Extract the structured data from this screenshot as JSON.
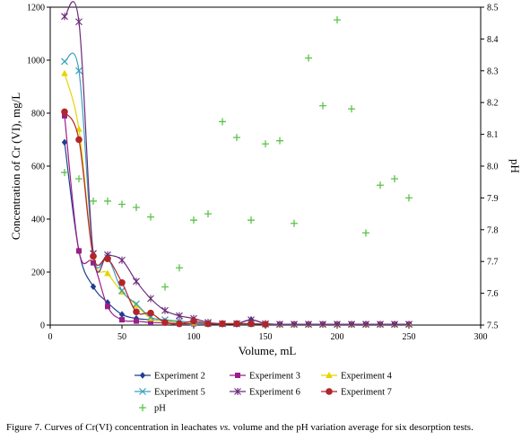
{
  "chart_data": {
    "type": "line",
    "xlabel": "Volume, mL",
    "ylabel": "Concentration of Cr (VI), mg/L",
    "y2label": "pH",
    "xlim": [
      0,
      300
    ],
    "xticks": [
      0,
      50,
      100,
      150,
      200,
      250,
      300
    ],
    "ylim": [
      0,
      1200
    ],
    "yticks": [
      0,
      200,
      400,
      600,
      800,
      1000,
      1200
    ],
    "y2lim": [
      7.5,
      8.5
    ],
    "y2ticks": [
      "7.5",
      "7.6",
      "7.7",
      "7.8",
      "7.9",
      "8.0",
      "8.1",
      "8.2",
      "8.3",
      "8.4",
      "8.5"
    ],
    "grid": false,
    "legend_position": "bottom",
    "series": [
      {
        "name": "Experiment 2",
        "color": "#1f3f8f",
        "marker": "diamond",
        "axis": "left",
        "points": [
          [
            10,
            690
          ],
          [
            20,
            280
          ],
          [
            30,
            145
          ],
          [
            40,
            85
          ],
          [
            50,
            40
          ],
          [
            60,
            25
          ],
          [
            70,
            20
          ],
          [
            80,
            15
          ],
          [
            90,
            10
          ],
          [
            100,
            8
          ],
          [
            110,
            5
          ],
          [
            120,
            5
          ],
          [
            130,
            5
          ],
          [
            140,
            20
          ],
          [
            150,
            5
          ],
          [
            160,
            3
          ],
          [
            170,
            3
          ],
          [
            180,
            3
          ],
          [
            190,
            3
          ],
          [
            200,
            3
          ],
          [
            210,
            3
          ],
          [
            220,
            3
          ],
          [
            230,
            3
          ],
          [
            240,
            3
          ],
          [
            250,
            3
          ]
        ]
      },
      {
        "name": "Experiment 3",
        "color": "#9b1f8a",
        "marker": "square",
        "axis": "left",
        "points": [
          [
            10,
            790
          ],
          [
            20,
            280
          ],
          [
            30,
            235
          ],
          [
            40,
            70
          ],
          [
            50,
            20
          ],
          [
            60,
            15
          ],
          [
            70,
            10
          ],
          [
            80,
            8
          ],
          [
            90,
            5
          ],
          [
            100,
            5
          ],
          [
            110,
            5
          ],
          [
            120,
            5
          ],
          [
            130,
            5
          ],
          [
            140,
            5
          ],
          [
            150,
            3
          ],
          [
            160,
            3
          ],
          [
            170,
            3
          ],
          [
            180,
            3
          ],
          [
            190,
            3
          ],
          [
            200,
            3
          ],
          [
            210,
            3
          ],
          [
            220,
            3
          ],
          [
            230,
            3
          ],
          [
            240,
            3
          ],
          [
            250,
            3
          ]
        ]
      },
      {
        "name": "Experiment 4",
        "color": "#e6d400",
        "marker": "triangle",
        "axis": "left",
        "points": [
          [
            10,
            950
          ],
          [
            20,
            740
          ],
          [
            30,
            260
          ],
          [
            40,
            195
          ],
          [
            50,
            125
          ],
          [
            60,
            75
          ],
          [
            70,
            25
          ],
          [
            80,
            15
          ],
          [
            90,
            10
          ],
          [
            100,
            8
          ],
          [
            110,
            5
          ],
          [
            120,
            5
          ],
          [
            130,
            5
          ],
          [
            140,
            5
          ],
          [
            150,
            3
          ],
          [
            160,
            3
          ],
          [
            170,
            3
          ],
          [
            180,
            3
          ],
          [
            190,
            3
          ],
          [
            200,
            3
          ],
          [
            210,
            3
          ],
          [
            220,
            3
          ],
          [
            230,
            3
          ],
          [
            240,
            3
          ],
          [
            250,
            3
          ]
        ]
      },
      {
        "name": "Experiment 5",
        "color": "#3a9fc0",
        "marker": "x",
        "axis": "left",
        "points": [
          [
            10,
            995
          ],
          [
            20,
            960
          ],
          [
            30,
            270
          ],
          [
            40,
            255
          ],
          [
            50,
            130
          ],
          [
            60,
            80
          ],
          [
            70,
            30
          ],
          [
            80,
            20
          ],
          [
            90,
            15
          ],
          [
            100,
            10
          ],
          [
            110,
            5
          ],
          [
            120,
            5
          ],
          [
            130,
            5
          ],
          [
            140,
            5
          ],
          [
            150,
            3
          ],
          [
            160,
            3
          ],
          [
            170,
            3
          ],
          [
            180,
            3
          ],
          [
            190,
            3
          ],
          [
            200,
            3
          ],
          [
            210,
            3
          ],
          [
            220,
            3
          ],
          [
            230,
            3
          ],
          [
            240,
            3
          ],
          [
            250,
            3
          ]
        ]
      },
      {
        "name": "Experiment 6",
        "color": "#6b2a7a",
        "marker": "star",
        "axis": "left",
        "points": [
          [
            10,
            1165
          ],
          [
            20,
            1145
          ],
          [
            30,
            270
          ],
          [
            40,
            265
          ],
          [
            50,
            245
          ],
          [
            60,
            165
          ],
          [
            70,
            100
          ],
          [
            80,
            55
          ],
          [
            90,
            35
          ],
          [
            100,
            25
          ],
          [
            110,
            10
          ],
          [
            120,
            5
          ],
          [
            130,
            5
          ],
          [
            140,
            20
          ],
          [
            150,
            5
          ],
          [
            160,
            3
          ],
          [
            170,
            3
          ],
          [
            180,
            3
          ],
          [
            190,
            3
          ],
          [
            200,
            3
          ],
          [
            210,
            3
          ],
          [
            220,
            3
          ],
          [
            230,
            3
          ],
          [
            240,
            3
          ],
          [
            250,
            3
          ]
        ]
      },
      {
        "name": "Experiment 7",
        "color": "#b0262a",
        "marker": "circle",
        "axis": "left",
        "points": [
          [
            10,
            805
          ],
          [
            20,
            700
          ],
          [
            30,
            260
          ],
          [
            40,
            250
          ],
          [
            50,
            160
          ],
          [
            60,
            50
          ],
          [
            70,
            45
          ],
          [
            80,
            10
          ],
          [
            90,
            5
          ],
          [
            100,
            15
          ],
          [
            110,
            5
          ],
          [
            120,
            5
          ],
          [
            130,
            5
          ],
          [
            140,
            5
          ],
          [
            150,
            3
          ]
        ]
      },
      {
        "name": "pH",
        "color": "#5cc24a",
        "marker": "plus",
        "axis": "right",
        "line": false,
        "points": [
          [
            10,
            7.98
          ],
          [
            20,
            7.96
          ],
          [
            30,
            7.89
          ],
          [
            40,
            7.89
          ],
          [
            50,
            7.88
          ],
          [
            60,
            7.87
          ],
          [
            70,
            7.84
          ],
          [
            80,
            7.62
          ],
          [
            90,
            7.68
          ],
          [
            100,
            7.83
          ],
          [
            110,
            7.85
          ],
          [
            120,
            8.14
          ],
          [
            130,
            8.09
          ],
          [
            140,
            7.83
          ],
          [
            150,
            8.07
          ],
          [
            160,
            8.08
          ],
          [
            170,
            7.82
          ],
          [
            180,
            8.34
          ],
          [
            190,
            8.19
          ],
          [
            200,
            8.46
          ],
          [
            210,
            8.18
          ],
          [
            220,
            7.79
          ],
          [
            230,
            7.94
          ],
          [
            240,
            7.96
          ],
          [
            250,
            7.9
          ]
        ]
      }
    ]
  },
  "caption": "Figure 7. Curves of Cr(VI) concentration in leachates vs. volume and the pH variation average for six desorption tests."
}
